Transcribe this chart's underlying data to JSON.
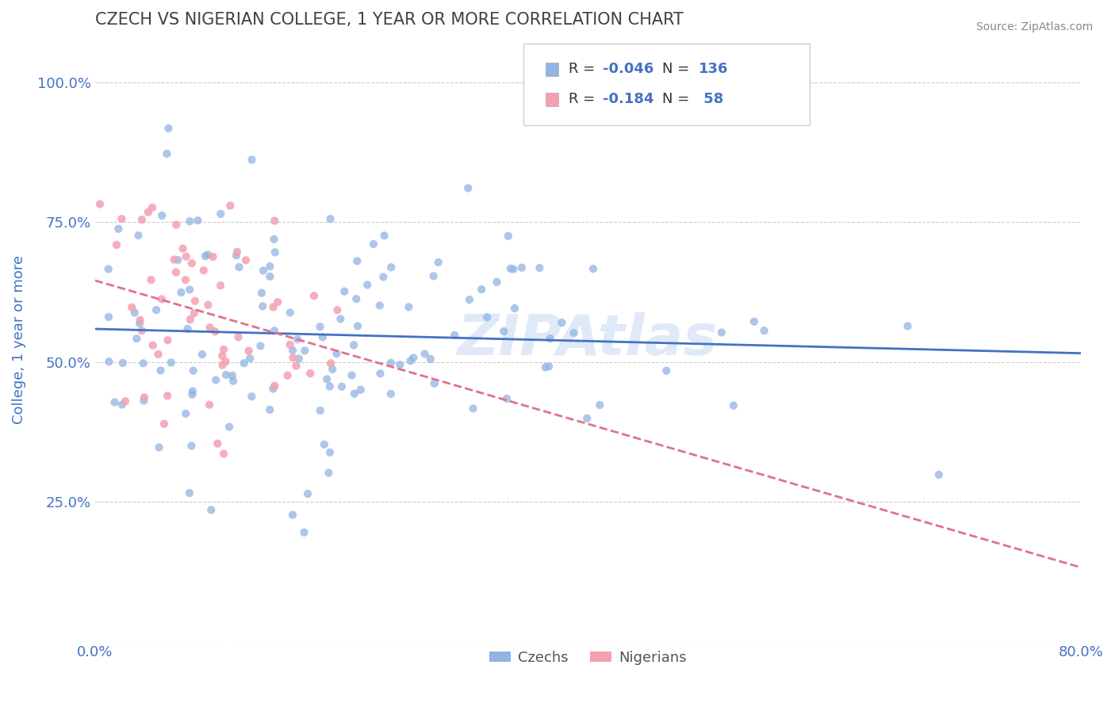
{
  "title": "CZECH VS NIGERIAN COLLEGE, 1 YEAR OR MORE CORRELATION CHART",
  "source_text": "Source: ZipAtlas.com",
  "xlabel": "",
  "ylabel": "College, 1 year or more",
  "xlim": [
    0.0,
    0.8
  ],
  "ylim": [
    0.0,
    1.05
  ],
  "xtick_vals": [
    0.0,
    0.1,
    0.2,
    0.3,
    0.4,
    0.5,
    0.6,
    0.7,
    0.8
  ],
  "xtick_labels": [
    "0.0%",
    "",
    "",
    "",
    "",
    "",
    "",
    "",
    "80.0%"
  ],
  "ytick_vals": [
    0.0,
    0.25,
    0.5,
    0.75,
    1.0
  ],
  "ytick_labels": [
    "",
    "25.0%",
    "50.0%",
    "75.0%",
    "100.0%"
  ],
  "czech_color": "#92b4e3",
  "nigerian_color": "#f4a0b0",
  "czech_line_color": "#4472c4",
  "nigerian_line_color": "#e07090",
  "watermark": "ZIPAtlas",
  "watermark_color": "#c0d4f0",
  "legend_r_czech": "R = -0.046",
  "legend_n_czech": "N = 136",
  "legend_r_nigerian": "R =  -0.184",
  "legend_n_nigerian": "N =  58",
  "czech_R": -0.046,
  "czech_N": 136,
  "nigerian_R": -0.184,
  "nigerian_N": 58,
  "czech_seed": 42,
  "nigerian_seed": 99,
  "background_color": "#ffffff",
  "grid_color": "#cccccc",
  "title_color": "#404040",
  "axis_label_color": "#4472c4",
  "tick_label_color": "#4472c4"
}
